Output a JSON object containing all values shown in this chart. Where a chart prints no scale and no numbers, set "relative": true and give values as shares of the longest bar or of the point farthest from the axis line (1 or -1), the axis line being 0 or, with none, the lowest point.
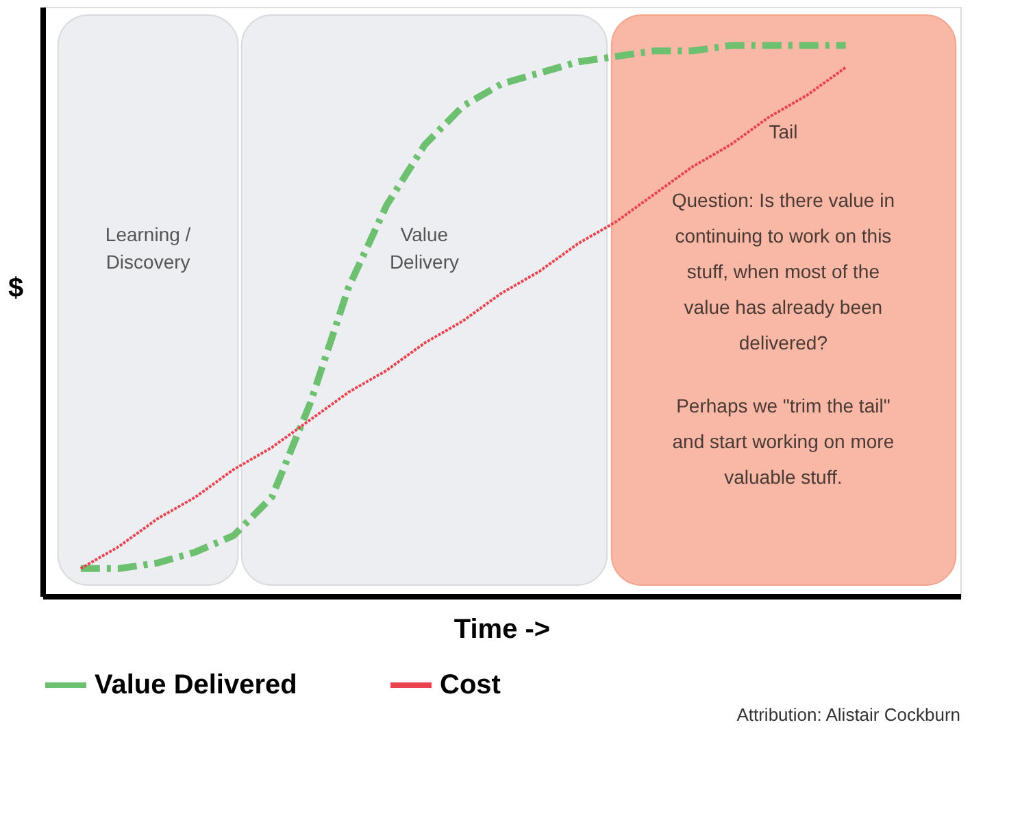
{
  "chart_data": {
    "type": "line",
    "relative": true,
    "xlabel": "Time ->",
    "ylabel": "$",
    "categories": [
      null,
      null,
      null,
      null,
      null,
      null,
      null,
      null,
      null,
      null,
      null,
      null,
      null,
      null,
      null,
      null,
      null,
      null,
      null,
      null,
      null,
      null,
      null
    ],
    "series": [
      {
        "name": "Value Delivered",
        "color": "#6cc070",
        "line_style": "dashed",
        "values": [
          0.05,
          0.05,
          0.06,
          0.08,
          0.11,
          0.18,
          0.35,
          0.56,
          0.71,
          0.82,
          0.89,
          0.93,
          0.95,
          0.97,
          0.98,
          0.99,
          0.99,
          1.0,
          1.0,
          1.0,
          1.0,
          null,
          null
        ]
      },
      {
        "name": "Cost",
        "color": "#e8434f",
        "line_style": "dotted",
        "values": [
          0.05,
          0.09,
          0.14,
          0.18,
          0.23,
          0.27,
          0.32,
          0.37,
          0.41,
          0.46,
          0.5,
          0.55,
          0.59,
          0.64,
          0.68,
          0.73,
          0.78,
          0.82,
          0.87,
          0.91,
          0.96,
          null,
          null
        ]
      }
    ],
    "annotations": [
      "Learning / Discovery",
      "Value Delivery",
      "Tail",
      "Question: Is there value in continuing to work on this stuff, when most of the value has already been delivered?",
      "Perhaps we \"trim the tail\" and start working on more valuable stuff.",
      "Attribution: Alistair Cockburn"
    ],
    "legend": "bottom",
    "grid": false,
    "tick_labels": false
  }
}
